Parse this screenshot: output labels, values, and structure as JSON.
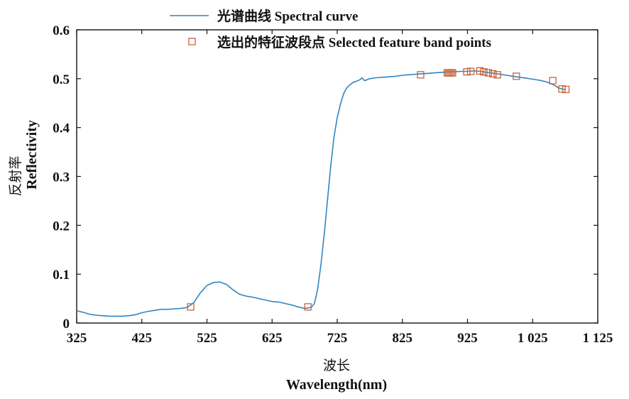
{
  "chart_data": {
    "type": "line",
    "xlabel_cn": "波长",
    "xlabel": "Wavelength(nm)",
    "ylabel_cn": "反射率",
    "ylabel": "Reflectivity",
    "xlim": [
      325,
      1125
    ],
    "ylim": [
      0,
      0.6
    ],
    "xticks": [
      325,
      425,
      525,
      625,
      725,
      825,
      925,
      1025,
      1125
    ],
    "xtick_labels": [
      "325",
      "425",
      "525",
      "625",
      "725",
      "825",
      "925",
      "1 025",
      "1 125"
    ],
    "yticks": [
      0,
      0.1,
      0.2,
      0.3,
      0.4,
      0.5,
      0.6
    ],
    "ytick_labels": [
      "0",
      "0.1",
      "0.2",
      "0.3",
      "0.4",
      "0.5",
      "0.6"
    ],
    "grid": false,
    "legend_position": "top",
    "series": [
      {
        "name": "光谱曲线 Spectral curve",
        "kind": "line",
        "color": "#2e86c1",
        "x": [
          325,
          335,
          345,
          355,
          365,
          375,
          385,
          395,
          405,
          415,
          425,
          435,
          445,
          455,
          465,
          475,
          485,
          495,
          505,
          515,
          525,
          535,
          545,
          555,
          565,
          575,
          585,
          595,
          605,
          615,
          625,
          635,
          645,
          655,
          665,
          675,
          685,
          690,
          695,
          700,
          705,
          710,
          715,
          720,
          725,
          730,
          735,
          740,
          745,
          750,
          755,
          760,
          763,
          767,
          775,
          785,
          795,
          805,
          815,
          825,
          835,
          845,
          855,
          865,
          875,
          885,
          895,
          905,
          915,
          925,
          935,
          945,
          955,
          965,
          975,
          985,
          995,
          1005,
          1015,
          1025,
          1035,
          1045,
          1055,
          1060,
          1065,
          1070,
          1075
        ],
        "y": [
          0.025,
          0.022,
          0.018,
          0.016,
          0.015,
          0.014,
          0.014,
          0.014,
          0.015,
          0.017,
          0.021,
          0.024,
          0.026,
          0.028,
          0.028,
          0.029,
          0.03,
          0.032,
          0.042,
          0.062,
          0.077,
          0.083,
          0.084,
          0.079,
          0.068,
          0.059,
          0.055,
          0.053,
          0.05,
          0.047,
          0.044,
          0.043,
          0.04,
          0.037,
          0.033,
          0.03,
          0.032,
          0.04,
          0.07,
          0.12,
          0.18,
          0.25,
          0.32,
          0.38,
          0.42,
          0.448,
          0.47,
          0.482,
          0.488,
          0.493,
          0.495,
          0.498,
          0.502,
          0.496,
          0.5,
          0.502,
          0.503,
          0.504,
          0.505,
          0.507,
          0.508,
          0.509,
          0.51,
          0.511,
          0.512,
          0.513,
          0.514,
          0.514,
          0.515,
          0.515,
          0.516,
          0.515,
          0.513,
          0.511,
          0.509,
          0.507,
          0.505,
          0.503,
          0.501,
          0.499,
          0.497,
          0.494,
          0.489,
          0.485,
          0.481,
          0.479,
          0.478
        ]
      },
      {
        "name": "选出的特征波段点 Selected feature band points",
        "kind": "scatter",
        "marker": "square",
        "color": "#c8643c",
        "x": [
          500,
          680,
          853,
          894,
          896,
          898,
          900,
          902,
          924,
          930,
          944,
          950,
          957,
          964,
          971,
          1000,
          1056,
          1070,
          1076
        ],
        "y": [
          0.033,
          0.033,
          0.508,
          0.512,
          0.512,
          0.512,
          0.512,
          0.512,
          0.514,
          0.515,
          0.516,
          0.514,
          0.512,
          0.51,
          0.508,
          0.505,
          0.496,
          0.479,
          0.478
        ]
      }
    ]
  }
}
